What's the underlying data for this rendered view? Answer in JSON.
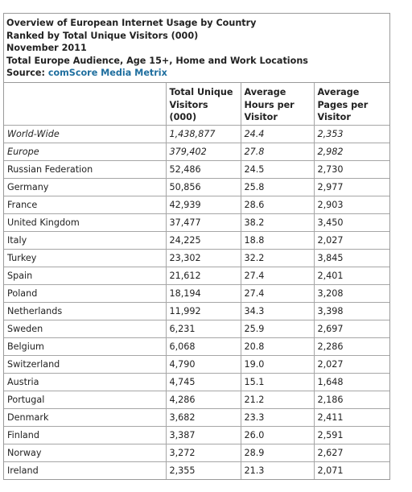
{
  "header": {
    "line1": "Overview of European Internet Usage by Country",
    "line2": "Ranked by Total Unique Visitors (000)",
    "line3": "November 2011",
    "line4": "Total Europe Audience, Age 15+, Home and Work Locations",
    "source_label": "Source:",
    "source_link": "comScore Media Metrix"
  },
  "columns": [
    "",
    "Total Unique Visitors (000)",
    "Average Hours per Visitor",
    "Average Pages per Visitor"
  ],
  "rows": [
    {
      "name": "World-Wide",
      "visitors": "1,438,877",
      "hours": "24.4",
      "pages": "2,353",
      "italic": true
    },
    {
      "name": "Europe",
      "visitors": "379,402",
      "hours": "27.8",
      "pages": "2,982",
      "italic": true
    },
    {
      "name": "Russian Federation",
      "visitors": "52,486",
      "hours": "24.5",
      "pages": "2,730"
    },
    {
      "name": "Germany",
      "visitors": "50,856",
      "hours": "25.8",
      "pages": "2,977"
    },
    {
      "name": "France",
      "visitors": "42,939",
      "hours": "28.6",
      "pages": "2,903"
    },
    {
      "name": "United Kingdom",
      "visitors": "37,477",
      "hours": "38.2",
      "pages": "3,450"
    },
    {
      "name": "Italy",
      "visitors": "24,225",
      "hours": "18.8",
      "pages": "2,027"
    },
    {
      "name": "Turkey",
      "visitors": "23,302",
      "hours": "32.2",
      "pages": "3,845"
    },
    {
      "name": "Spain",
      "visitors": "21,612",
      "hours": "27.4",
      "pages": "2,401"
    },
    {
      "name": "Poland",
      "visitors": "18,194",
      "hours": "27.4",
      "pages": "3,208"
    },
    {
      "name": "Netherlands",
      "visitors": "11,992",
      "hours": "34.3",
      "pages": "3,398"
    },
    {
      "name": "Sweden",
      "visitors": "6,231",
      "hours": "25.9",
      "pages": "2,697"
    },
    {
      "name": "Belgium",
      "visitors": "6,068",
      "hours": "20.8",
      "pages": "2,286"
    },
    {
      "name": "Switzerland",
      "visitors": "4,790",
      "hours": "19.0",
      "pages": "2,027"
    },
    {
      "name": "Austria",
      "visitors": "4,745",
      "hours": "15.1",
      "pages": "1,648"
    },
    {
      "name": "Portugal",
      "visitors": "4,286",
      "hours": "21.2",
      "pages": "2,186"
    },
    {
      "name": "Denmark",
      "visitors": "3,682",
      "hours": "23.3",
      "pages": "2,411"
    },
    {
      "name": "Finland",
      "visitors": "3,387",
      "hours": "26.0",
      "pages": "2,591"
    },
    {
      "name": "Norway",
      "visitors": "3,272",
      "hours": "28.9",
      "pages": "2,627"
    },
    {
      "name": "Ireland",
      "visitors": "2,355",
      "hours": "21.3",
      "pages": "2,071"
    }
  ]
}
